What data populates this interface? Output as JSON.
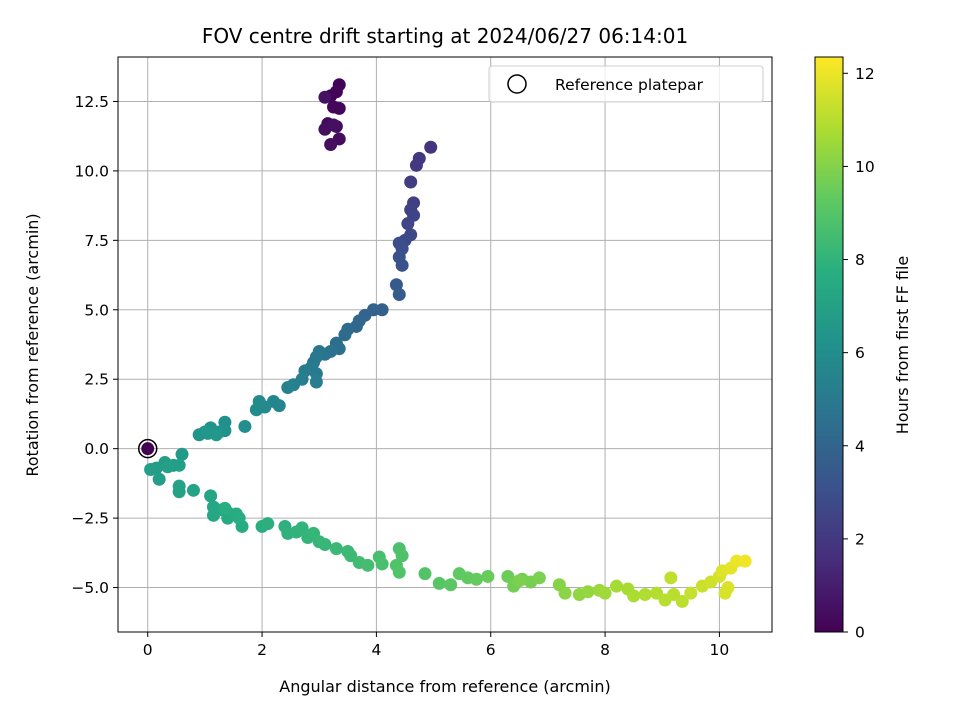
{
  "chart_data": {
    "type": "scatter",
    "title": "FOV centre drift starting at 2024/06/27 06:14:01",
    "xlabel": "Angular distance from reference (arcmin)",
    "ylabel": "Rotation from reference (arcmin)",
    "xlim": [
      -0.52,
      10.92
    ],
    "ylim": [
      -6.6,
      14.1
    ],
    "xticks": [
      0,
      2,
      4,
      6,
      8,
      10
    ],
    "yticks": [
      -5.0,
      -2.5,
      0.0,
      2.5,
      5.0,
      7.5,
      10.0,
      12.5
    ],
    "ytick_labels": [
      "−5.0",
      "−2.5",
      "0.0",
      "2.5",
      "5.0",
      "7.5",
      "10.0",
      "12.5"
    ],
    "grid": true,
    "legend": {
      "label": "Reference platepar",
      "placement": "top-right"
    },
    "reference_point": {
      "x": 0,
      "y": 0
    },
    "colorbar": {
      "label": "Hours from first FF file",
      "colormap": "viridis",
      "range": [
        0,
        12.35
      ],
      "ticks": [
        0,
        2,
        4,
        6,
        8,
        10,
        12
      ]
    },
    "series": [
      {
        "columns": [
          "x",
          "y",
          "hours"
        ],
        "points": [
          [
            3.2,
            12.7,
            0.05
          ],
          [
            3.35,
            13.1,
            0.1
          ],
          [
            3.3,
            12.85,
            0.15
          ],
          [
            3.25,
            12.3,
            0.2
          ],
          [
            3.35,
            12.25,
            0.25
          ],
          [
            3.15,
            11.7,
            0.3
          ],
          [
            3.3,
            11.6,
            0.35
          ],
          [
            3.35,
            11.15,
            0.4
          ],
          [
            3.2,
            10.95,
            0.45
          ],
          [
            3.1,
            11.5,
            0.5
          ],
          [
            3.25,
            11.65,
            0.55
          ],
          [
            3.1,
            12.65,
            0.6
          ],
          [
            4.95,
            10.85,
            1.9
          ],
          [
            4.75,
            10.45,
            2.0
          ],
          [
            4.7,
            10.2,
            2.1
          ],
          [
            4.6,
            9.6,
            2.2
          ],
          [
            4.65,
            8.85,
            2.3
          ],
          [
            4.6,
            8.6,
            2.4
          ],
          [
            4.65,
            8.4,
            2.5
          ],
          [
            4.55,
            8.1,
            2.6
          ],
          [
            4.6,
            7.7,
            2.7
          ],
          [
            4.5,
            7.5,
            2.8
          ],
          [
            4.4,
            7.4,
            2.9
          ],
          [
            4.45,
            7.2,
            3.0
          ],
          [
            4.4,
            6.9,
            3.1
          ],
          [
            4.45,
            6.6,
            3.2
          ],
          [
            4.35,
            5.9,
            3.5
          ],
          [
            4.4,
            5.55,
            3.6
          ],
          [
            4.1,
            5.0,
            3.8
          ],
          [
            3.95,
            5.0,
            3.9
          ],
          [
            3.8,
            4.8,
            4.0
          ],
          [
            3.7,
            4.6,
            4.1
          ],
          [
            3.65,
            4.4,
            4.2
          ],
          [
            3.5,
            4.3,
            4.3
          ],
          [
            3.45,
            4.1,
            4.4
          ],
          [
            3.3,
            3.8,
            4.5
          ],
          [
            3.35,
            3.6,
            4.6
          ],
          [
            3.2,
            3.5,
            4.7
          ],
          [
            3.1,
            3.4,
            4.8
          ],
          [
            3.0,
            3.5,
            4.9
          ],
          [
            2.95,
            3.3,
            5.0
          ],
          [
            2.9,
            3.1,
            5.05
          ],
          [
            2.85,
            2.9,
            5.1
          ],
          [
            2.95,
            2.7,
            5.15
          ],
          [
            2.75,
            2.8,
            5.2
          ],
          [
            2.95,
            2.4,
            5.25
          ],
          [
            2.7,
            2.5,
            5.3
          ],
          [
            2.55,
            2.3,
            5.4
          ],
          [
            2.45,
            2.2,
            5.5
          ],
          [
            2.3,
            1.55,
            5.6
          ],
          [
            2.2,
            1.7,
            5.7
          ],
          [
            2.05,
            1.5,
            5.8
          ],
          [
            1.95,
            1.7,
            5.9
          ],
          [
            1.9,
            1.4,
            6.0
          ],
          [
            1.7,
            0.8,
            6.1
          ],
          [
            1.35,
            0.95,
            6.2
          ],
          [
            1.35,
            0.65,
            6.25
          ],
          [
            1.25,
            0.6,
            6.3
          ],
          [
            1.1,
            0.75,
            6.35
          ],
          [
            1.0,
            0.6,
            6.4
          ],
          [
            0.9,
            0.5,
            6.45
          ],
          [
            1.05,
            0.55,
            6.5
          ],
          [
            1.2,
            0.5,
            6.55
          ],
          [
            0.6,
            -0.2,
            6.7
          ],
          [
            0.45,
            -0.6,
            6.75
          ],
          [
            0.3,
            -0.5,
            6.8
          ],
          [
            0.15,
            -0.7,
            6.85
          ],
          [
            0.05,
            -0.75,
            6.9
          ],
          [
            0.2,
            -1.1,
            6.95
          ],
          [
            0.55,
            -0.6,
            7.0
          ],
          [
            0.35,
            -0.65,
            7.05
          ],
          [
            0.55,
            -1.35,
            7.1
          ],
          [
            0.55,
            -1.55,
            7.15
          ],
          [
            0.8,
            -1.5,
            7.2
          ],
          [
            1.1,
            -1.7,
            7.3
          ],
          [
            1.15,
            -2.1,
            7.35
          ],
          [
            1.15,
            -2.4,
            7.4
          ],
          [
            1.3,
            -2.2,
            7.45
          ],
          [
            1.4,
            -2.3,
            7.5
          ],
          [
            1.4,
            -2.5,
            7.55
          ],
          [
            1.55,
            -2.35,
            7.6
          ],
          [
            1.65,
            -2.8,
            7.65
          ],
          [
            1.6,
            -2.5,
            7.7
          ],
          [
            1.35,
            -2.15,
            7.75
          ],
          [
            2.0,
            -2.8,
            7.8
          ],
          [
            2.1,
            -2.7,
            7.85
          ],
          [
            2.4,
            -2.8,
            7.9
          ],
          [
            2.45,
            -3.05,
            7.95
          ],
          [
            2.6,
            -3.0,
            8.0
          ],
          [
            2.7,
            -2.85,
            8.05
          ],
          [
            2.8,
            -3.2,
            8.1
          ],
          [
            2.9,
            -3.05,
            8.15
          ],
          [
            3.0,
            -3.35,
            8.2
          ],
          [
            3.1,
            -3.45,
            8.25
          ],
          [
            3.3,
            -3.6,
            8.3
          ],
          [
            3.5,
            -3.7,
            8.35
          ],
          [
            3.55,
            -3.85,
            8.4
          ],
          [
            3.7,
            -4.1,
            8.5
          ],
          [
            3.85,
            -4.2,
            8.6
          ],
          [
            4.05,
            -3.9,
            8.7
          ],
          [
            4.1,
            -4.15,
            8.75
          ],
          [
            4.4,
            -3.6,
            8.8
          ],
          [
            4.45,
            -3.85,
            8.85
          ],
          [
            4.35,
            -4.2,
            8.9
          ],
          [
            4.4,
            -4.45,
            8.95
          ],
          [
            4.85,
            -4.5,
            9.0
          ],
          [
            5.1,
            -4.85,
            9.1
          ],
          [
            5.3,
            -4.9,
            9.2
          ],
          [
            5.45,
            -4.5,
            9.3
          ],
          [
            5.6,
            -4.65,
            9.35
          ],
          [
            5.75,
            -4.7,
            9.4
          ],
          [
            5.95,
            -4.6,
            9.5
          ],
          [
            6.3,
            -4.6,
            9.6
          ],
          [
            6.4,
            -4.95,
            9.7
          ],
          [
            6.55,
            -4.7,
            9.75
          ],
          [
            6.7,
            -4.8,
            9.8
          ],
          [
            6.85,
            -4.65,
            9.85
          ],
          [
            6.5,
            -4.75,
            9.9
          ],
          [
            7.2,
            -4.9,
            10.1
          ],
          [
            7.3,
            -5.2,
            10.2
          ],
          [
            7.55,
            -5.25,
            10.3
          ],
          [
            7.7,
            -5.15,
            10.4
          ],
          [
            7.9,
            -5.1,
            10.5
          ],
          [
            8.0,
            -5.2,
            10.6
          ],
          [
            8.2,
            -4.95,
            10.7
          ],
          [
            8.4,
            -5.05,
            10.75
          ],
          [
            8.5,
            -5.3,
            10.8
          ],
          [
            8.7,
            -5.25,
            10.9
          ],
          [
            8.9,
            -5.2,
            11.0
          ],
          [
            9.05,
            -5.45,
            11.05
          ],
          [
            9.2,
            -5.25,
            11.1
          ],
          [
            9.35,
            -5.5,
            11.15
          ],
          [
            9.15,
            -4.65,
            11.2
          ],
          [
            9.5,
            -5.2,
            11.3
          ],
          [
            9.7,
            -4.95,
            11.4
          ],
          [
            9.85,
            -4.8,
            11.5
          ],
          [
            10.0,
            -4.6,
            11.6
          ],
          [
            10.15,
            -5.0,
            11.7
          ],
          [
            10.05,
            -4.4,
            11.8
          ],
          [
            10.2,
            -4.3,
            11.9
          ],
          [
            10.3,
            -4.05,
            12.0
          ],
          [
            10.45,
            -4.05,
            12.1
          ],
          [
            10.1,
            -5.2,
            11.65
          ],
          [
            0,
            0,
            0.02
          ]
        ]
      }
    ]
  }
}
